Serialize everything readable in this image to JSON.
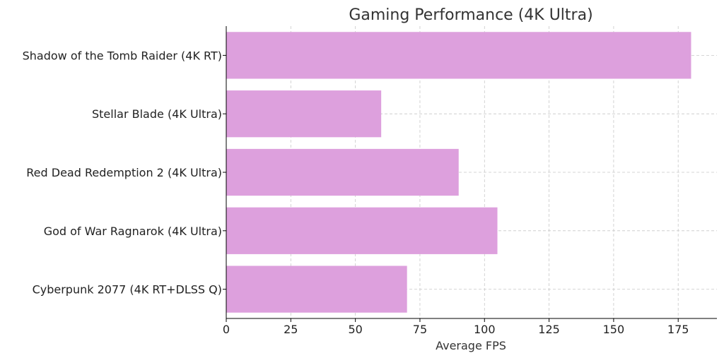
{
  "chart_data": {
    "type": "bar",
    "orientation": "horizontal",
    "title": "Gaming Performance (4K Ultra)",
    "xlabel": "Average FPS",
    "ylabel": "",
    "categories": [
      "Shadow of the Tomb Raider (4K RT)",
      "Stellar Blade (4K Ultra)",
      "Red Dead Redemption 2 (4K Ultra)",
      "God of War Ragnarok (4K Ultra)",
      "Cyberpunk 2077 (4K RT+DLSS Q)"
    ],
    "values": [
      180,
      60,
      90,
      105,
      70
    ],
    "xlim": [
      0,
      190
    ],
    "xticks": [
      0,
      25,
      50,
      75,
      100,
      125,
      150,
      175
    ],
    "grid": true,
    "bar_color": "#dda0dd"
  }
}
